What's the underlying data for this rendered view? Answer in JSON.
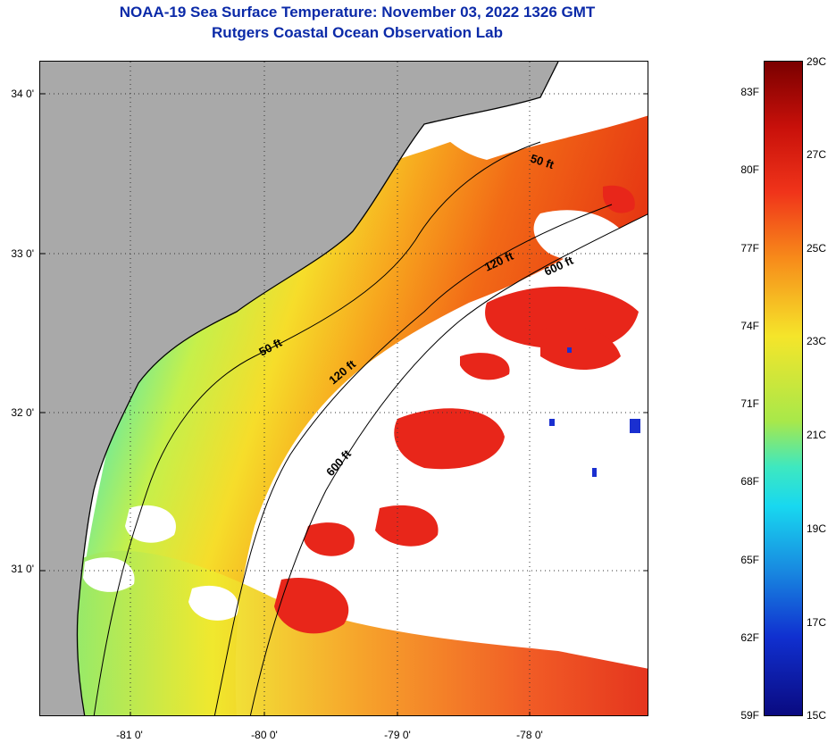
{
  "title": {
    "line1": "NOAA-19 Sea Surface Temperature:  November 03, 2022 1326 GMT",
    "line2": "Rutgers Coastal Ocean Observation Lab"
  },
  "map": {
    "lat_ticks": [
      "34 0'",
      "33 0'",
      "32 0'",
      "31 0'"
    ],
    "lon_ticks": [
      "-81 0'",
      "-80 0'",
      "-79 0'",
      "-78 0'"
    ],
    "depth_contours": [
      {
        "label": "50 ft",
        "color": "#000000"
      },
      {
        "label": "50 ft",
        "color": "#000000"
      },
      {
        "label": "120 ft",
        "color": "#000000"
      },
      {
        "label": "120 ft",
        "color": "#000000"
      },
      {
        "label": "600 ft",
        "color": "#000000"
      },
      {
        "label": "600 ft",
        "color": "#000000"
      }
    ],
    "colors": {
      "land": "#a9a9a9",
      "cloud": "#ffffff",
      "title": "#0b2aa8"
    }
  },
  "colorbar": {
    "fahrenheit": [
      "83F",
      "80F",
      "77F",
      "74F",
      "71F",
      "68F",
      "65F",
      "62F",
      "59F"
    ],
    "celsius": [
      "29C",
      "27C",
      "25C",
      "23C",
      "21C",
      "19C",
      "17C",
      "15C"
    ],
    "range_c": [
      15,
      29
    ]
  }
}
